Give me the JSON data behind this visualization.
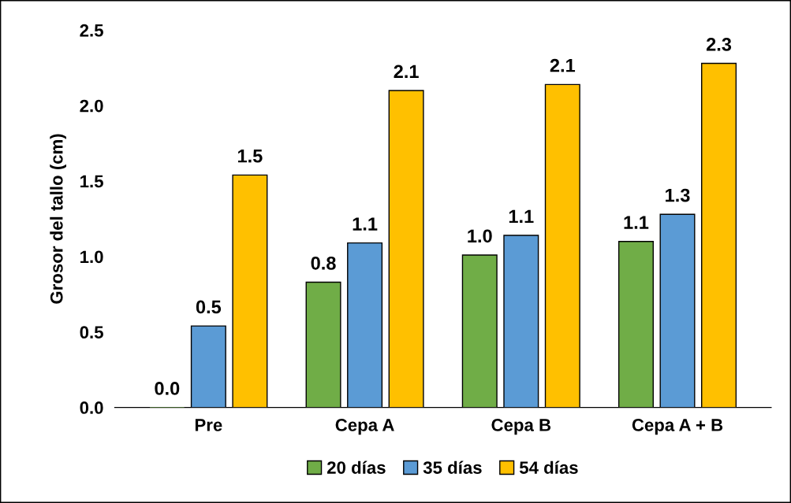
{
  "chart_data": {
    "type": "bar",
    "ylabel": "Grosor del tallo (cm)",
    "categories": [
      "Pre",
      "Cepa A",
      "Cepa B",
      "Cepa A + B"
    ],
    "series": [
      {
        "name": "20 días",
        "color": "#70ad47",
        "values": [
          0.0,
          0.83,
          1.01,
          1.1
        ],
        "value_labels": [
          "0.0",
          "0.8",
          "1.0",
          "1.1"
        ]
      },
      {
        "name": "35 días",
        "color": "#5b9bd5",
        "values": [
          0.54,
          1.09,
          1.14,
          1.28
        ],
        "value_labels": [
          "0.5",
          "1.1",
          "1.1",
          "1.3"
        ]
      },
      {
        "name": "54 días",
        "color": "#ffc000",
        "values": [
          1.54,
          2.1,
          2.14,
          2.28
        ],
        "value_labels": [
          "1.5",
          "2.1",
          "2.1",
          "2.3"
        ]
      }
    ],
    "ylim": [
      0,
      2.5
    ],
    "yticks": [
      {
        "value": 0,
        "label": "0.0"
      },
      {
        "value": 0.5,
        "label": "0.5"
      },
      {
        "value": 1,
        "label": "1.0"
      },
      {
        "value": 1.5,
        "label": "1.5"
      },
      {
        "value": 2,
        "label": "2.0"
      },
      {
        "value": 2.5,
        "label": "2.5"
      }
    ],
    "grid": false,
    "legend": "bottom"
  }
}
